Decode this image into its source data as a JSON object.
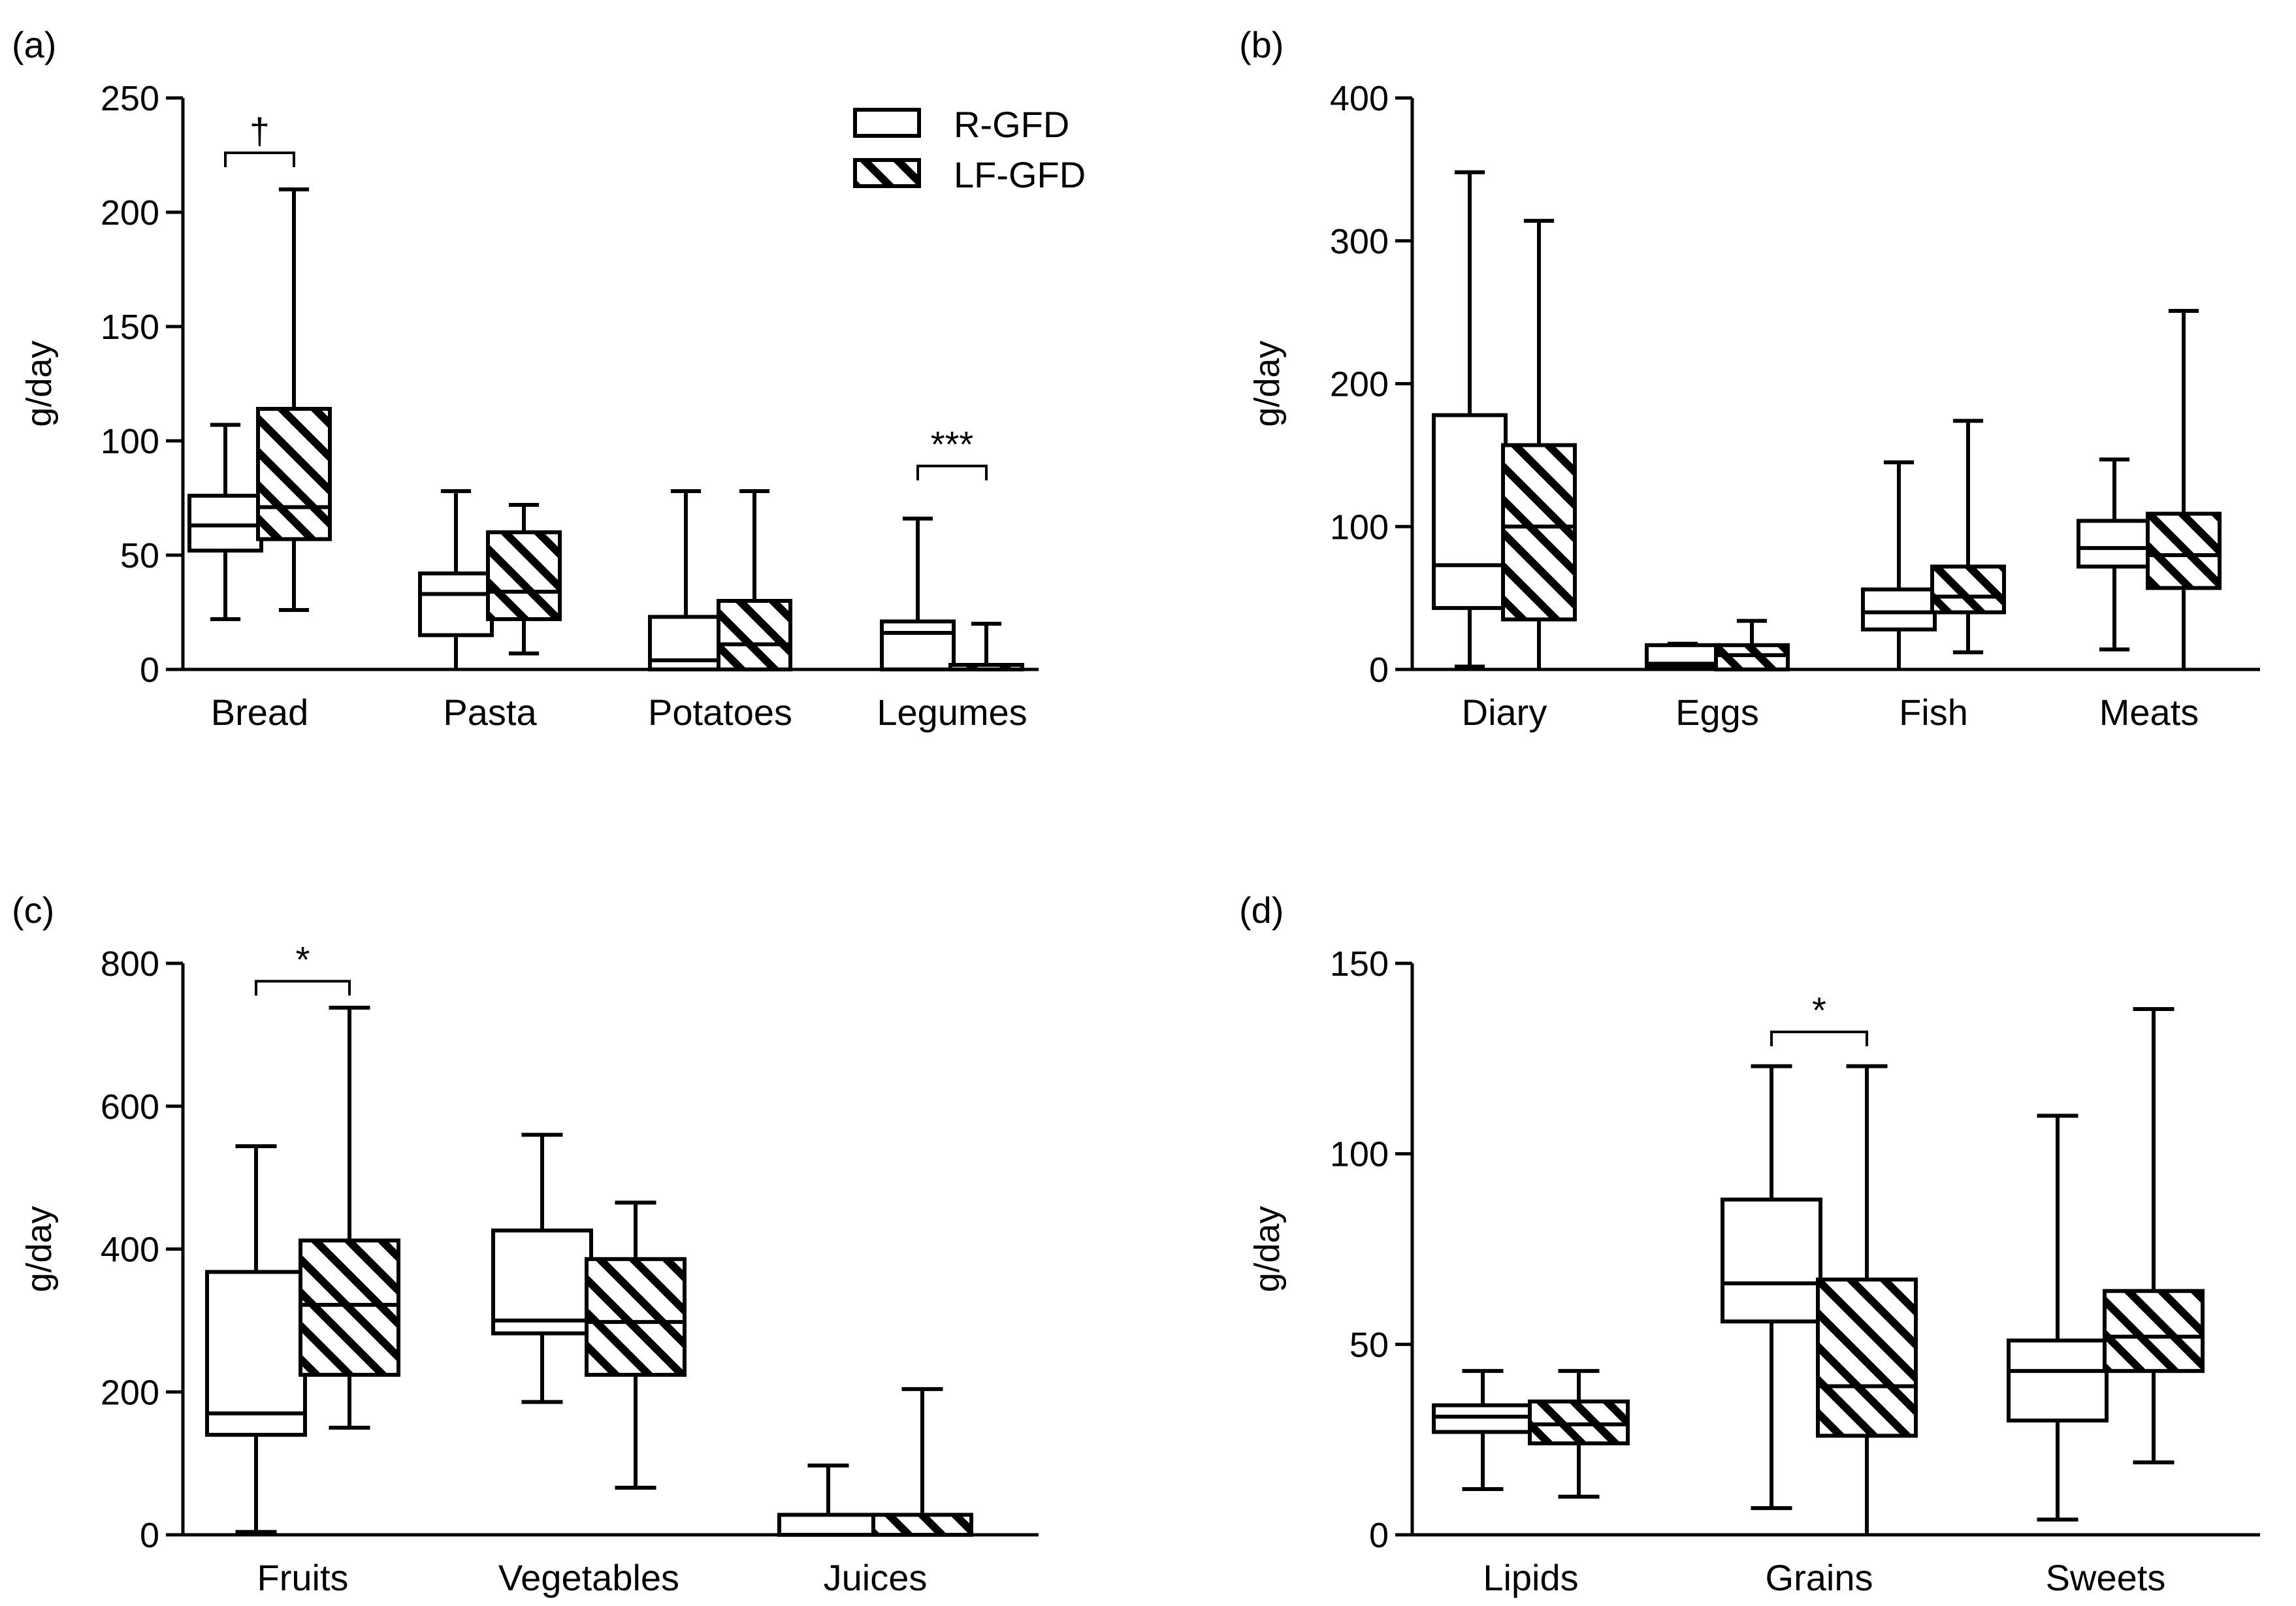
{
  "legend": [
    {
      "key": "R-GFD",
      "label": "R-GFD",
      "style": "open"
    },
    {
      "key": "LF-GFD",
      "label": "LF-GFD",
      "style": "hatched"
    }
  ],
  "colors": {
    "stroke": "#000000",
    "fill": "#ffffff"
  },
  "chart_data": [
    {
      "panel": "(a)",
      "type": "box",
      "ylabel": "g/day",
      "ylim": [
        0,
        250
      ],
      "yticks": [
        "0",
        "50",
        "100",
        "150",
        "200",
        "250"
      ],
      "categories": [
        "Bread",
        "Pasta",
        "Potatoes",
        "Legumes"
      ],
      "series": [
        {
          "name": "R-GFD",
          "boxes": [
            {
              "min": 22,
              "q1": 52,
              "median": 63,
              "q3": 76,
              "max": 107
            },
            {
              "min": 0,
              "q1": 15,
              "median": 33,
              "q3": 42,
              "max": 78
            },
            {
              "min": 0,
              "q1": 0,
              "median": 4,
              "q3": 23,
              "max": 78
            },
            {
              "min": 0,
              "q1": 0,
              "median": 16,
              "q3": 21,
              "max": 66
            }
          ]
        },
        {
          "name": "LF-GFD",
          "boxes": [
            {
              "min": 26,
              "q1": 57,
              "median": 71,
              "q3": 114,
              "max": 210
            },
            {
              "min": 7,
              "q1": 22,
              "median": 34,
              "q3": 60,
              "max": 72
            },
            {
              "min": 0,
              "q1": 0,
              "median": 11,
              "q3": 30,
              "max": 78
            },
            {
              "min": 0,
              "q1": 0,
              "median": 0,
              "q3": 2,
              "max": 20
            }
          ]
        }
      ],
      "significance": [
        {
          "category": "Bread",
          "label": "†",
          "y": 226
        },
        {
          "category": "Legumes",
          "label": "***",
          "y": 89
        }
      ]
    },
    {
      "panel": "(b)",
      "type": "box",
      "ylabel": "g/day",
      "ylim": [
        0,
        400
      ],
      "yticks": [
        "0",
        "100",
        "200",
        "300",
        "400"
      ],
      "categories": [
        "Diary",
        "Eggs",
        "Fish",
        "Meats"
      ],
      "series": [
        {
          "name": "R-GFD",
          "boxes": [
            {
              "min": 2,
              "q1": 43,
              "median": 73,
              "q3": 178,
              "max": 348
            },
            {
              "min": 0,
              "q1": 2,
              "median": 4,
              "q3": 17,
              "max": 18
            },
            {
              "min": 0,
              "q1": 28,
              "median": 40,
              "q3": 56,
              "max": 145
            },
            {
              "min": 14,
              "q1": 72,
              "median": 85,
              "q3": 104,
              "max": 147
            }
          ]
        },
        {
          "name": "LF-GFD",
          "boxes": [
            {
              "min": 0,
              "q1": 35,
              "median": 100,
              "q3": 157,
              "max": 314
            },
            {
              "min": 0,
              "q1": 0,
              "median": 10,
              "q3": 17,
              "max": 34
            },
            {
              "min": 12,
              "q1": 40,
              "median": 51,
              "q3": 72,
              "max": 174
            },
            {
              "min": 0,
              "q1": 57,
              "median": 80,
              "q3": 109,
              "max": 251
            }
          ]
        }
      ],
      "significance": []
    },
    {
      "panel": "(c)",
      "type": "box",
      "ylabel": "g/day",
      "ylim": [
        0,
        800
      ],
      "yticks": [
        "0",
        "200",
        "400",
        "600",
        "800"
      ],
      "categories": [
        "Fruits",
        "Vegetables",
        "Juices"
      ],
      "series": [
        {
          "name": "R-GFD",
          "boxes": [
            {
              "min": 4,
              "q1": 140,
              "median": 170,
              "q3": 368,
              "max": 544
            },
            {
              "min": 186,
              "q1": 282,
              "median": 300,
              "q3": 426,
              "max": 560
            },
            {
              "min": 0,
              "q1": 0,
              "median": 0,
              "q3": 28,
              "max": 97
            }
          ]
        },
        {
          "name": "LF-GFD",
          "boxes": [
            {
              "min": 150,
              "q1": 224,
              "median": 322,
              "q3": 412,
              "max": 738
            },
            {
              "min": 66,
              "q1": 224,
              "median": 298,
              "q3": 386,
              "max": 465
            },
            {
              "min": 0,
              "q1": 0,
              "median": 0,
              "q3": 28,
              "max": 204
            }
          ]
        }
      ],
      "significance": [
        {
          "category": "Fruits",
          "label": "*",
          "y": 775
        }
      ]
    },
    {
      "panel": "(d)",
      "type": "box",
      "ylabel": "g/day",
      "ylim": [
        0,
        150
      ],
      "yticks": [
        "0",
        "50",
        "100",
        "150"
      ],
      "categories": [
        "Lipids",
        "Grains",
        "Sweets"
      ],
      "series": [
        {
          "name": "R-GFD",
          "boxes": [
            {
              "min": 12,
              "q1": 27,
              "median": 31,
              "q3": 34,
              "max": 43
            },
            {
              "min": 7,
              "q1": 56,
              "median": 66,
              "q3": 88,
              "max": 123
            },
            {
              "min": 4,
              "q1": 30,
              "median": 43,
              "q3": 51,
              "max": 110
            }
          ]
        },
        {
          "name": "LF-GFD",
          "boxes": [
            {
              "min": 10,
              "q1": 24,
              "median": 29,
              "q3": 35,
              "max": 43
            },
            {
              "min": 0,
              "q1": 26,
              "median": 39,
              "q3": 67,
              "max": 123
            },
            {
              "min": 19,
              "q1": 43,
              "median": 52,
              "q3": 64,
              "max": 138
            }
          ]
        }
      ],
      "significance": [
        {
          "category": "Grains",
          "label": "*",
          "y": 132
        }
      ]
    }
  ]
}
